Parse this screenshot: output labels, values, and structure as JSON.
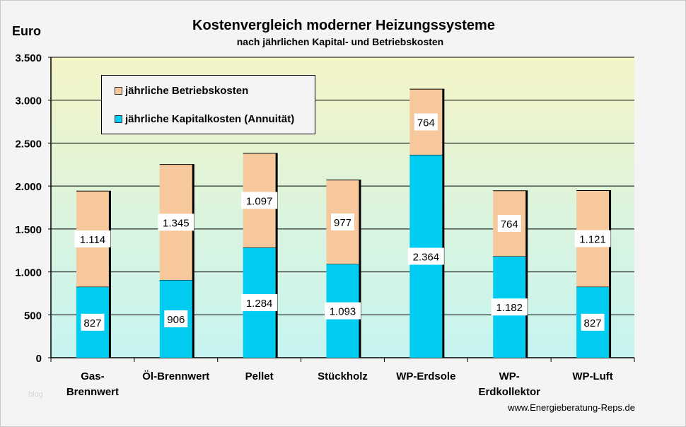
{
  "chart_data": {
    "type": "bar",
    "stacked": true,
    "title": "Kostenvergleich moderner Heizungssysteme",
    "subtitle": "nach  jährlichen Kapital- und Betriebskosten",
    "ylabel": "Euro",
    "xlabel": "",
    "ylim": [
      0,
      3500
    ],
    "yticks": [
      0,
      500,
      1000,
      1500,
      2000,
      2500,
      3000,
      3500
    ],
    "ytick_labels": [
      "0",
      "500",
      "1.000",
      "1.500",
      "2.000",
      "2.500",
      "3.000",
      "3.500"
    ],
    "grid": true,
    "categories": [
      "Gas-\nBrennwert",
      "Öl-Brennwert",
      "Pellet",
      "Stückholz",
      "WP-Erdsole",
      "WP-\nErdkollektor",
      "WP-Luft"
    ],
    "series": [
      {
        "name": "jährliche Kapitalkosten (Annuität)",
        "color": "#00ccf2",
        "values": [
          827,
          906,
          1284,
          1093,
          2364,
          1182,
          827
        ],
        "labels": [
          "827",
          "906",
          "1.284",
          "1.093",
          "2.364",
          "1.182",
          "827"
        ]
      },
      {
        "name": "jährliche Betriebskosten",
        "color": "#f6c89b",
        "values": [
          1114,
          1345,
          1097,
          977,
          764,
          764,
          1121
        ],
        "labels": [
          "1.114",
          "1.345",
          "1.097",
          "977",
          "764",
          "764",
          "1.121"
        ]
      }
    ],
    "legend": {
      "placement": "top-left",
      "entries": [
        "jährliche Betriebskosten",
        "jährliche Kapitalkosten (Annuität)"
      ]
    }
  },
  "source": "www.Energieberatung-Reps.de",
  "watermark": "blog"
}
